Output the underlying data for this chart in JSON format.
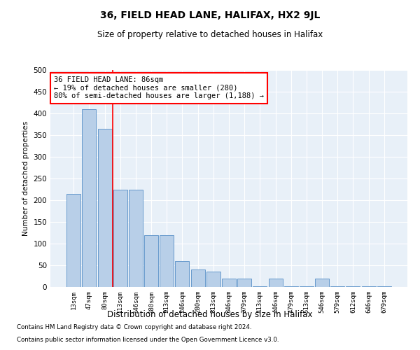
{
  "title": "36, FIELD HEAD LANE, HALIFAX, HX2 9JL",
  "subtitle": "Size of property relative to detached houses in Halifax",
  "xlabel": "Distribution of detached houses by size in Halifax",
  "ylabel": "Number of detached properties",
  "categories": [
    "13sqm",
    "47sqm",
    "80sqm",
    "113sqm",
    "146sqm",
    "180sqm",
    "213sqm",
    "246sqm",
    "280sqm",
    "313sqm",
    "346sqm",
    "379sqm",
    "413sqm",
    "446sqm",
    "479sqm",
    "513sqm",
    "546sqm",
    "579sqm",
    "612sqm",
    "646sqm",
    "679sqm"
  ],
  "values": [
    215,
    410,
    365,
    225,
    225,
    120,
    120,
    60,
    40,
    35,
    20,
    20,
    2,
    20,
    2,
    2,
    20,
    2,
    2,
    2,
    2
  ],
  "bar_color": "#b8cfe8",
  "bar_edge_color": "#6699cc",
  "vline_color": "red",
  "vline_pos": 2.5,
  "annotation_text": "36 FIELD HEAD LANE: 86sqm\n← 19% of detached houses are smaller (280)\n80% of semi-detached houses are larger (1,188) →",
  "annotation_box_color": "white",
  "annotation_box_edge_color": "red",
  "ylim": [
    0,
    500
  ],
  "yticks": [
    0,
    50,
    100,
    150,
    200,
    250,
    300,
    350,
    400,
    450,
    500
  ],
  "bg_color": "#e8f0f8",
  "grid_color": "white",
  "footer1": "Contains HM Land Registry data © Crown copyright and database right 2024.",
  "footer2": "Contains public sector information licensed under the Open Government Licence v3.0."
}
